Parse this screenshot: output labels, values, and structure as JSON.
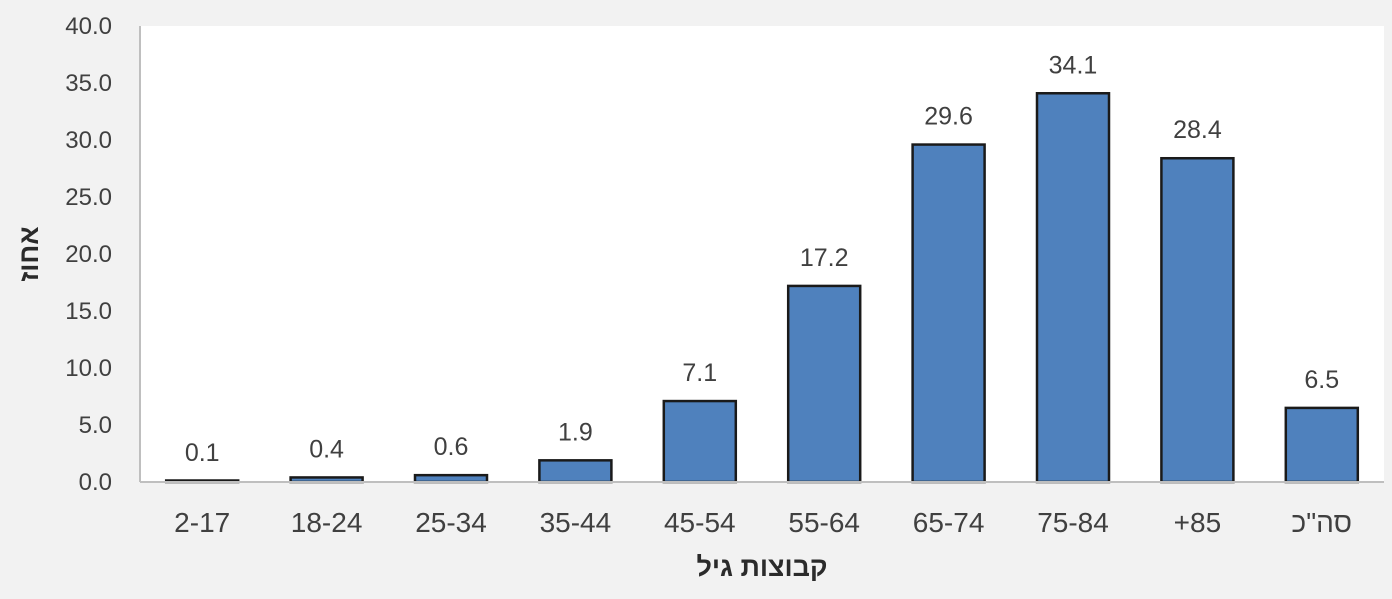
{
  "chart_data": {
    "type": "bar",
    "title": "",
    "xlabel": "קבוצות גיל",
    "ylabel": "אחוז",
    "categories": [
      "2-17",
      "18-24",
      "25-34",
      "35-44",
      "45-54",
      "55-64",
      "65-74",
      "75-84",
      "+85",
      "סה\"כ"
    ],
    "values": [
      0.1,
      0.4,
      0.6,
      1.9,
      7.1,
      17.2,
      29.6,
      34.1,
      28.4,
      6.5
    ],
    "data_labels": [
      "0.1",
      "0.4",
      "0.6",
      "1.9",
      "7.1",
      "17.2",
      "29.6",
      "34.1",
      "28.4",
      "6.5"
    ],
    "ylim": [
      0,
      40
    ],
    "yticks": [
      "0.0",
      "5.0",
      "10.0",
      "15.0",
      "20.0",
      "25.0",
      "30.0",
      "35.0",
      "40.0"
    ],
    "grid": false,
    "legend": "none",
    "bar_color": "#4f81bd",
    "bar_edge_color": "#1a1a1a"
  }
}
